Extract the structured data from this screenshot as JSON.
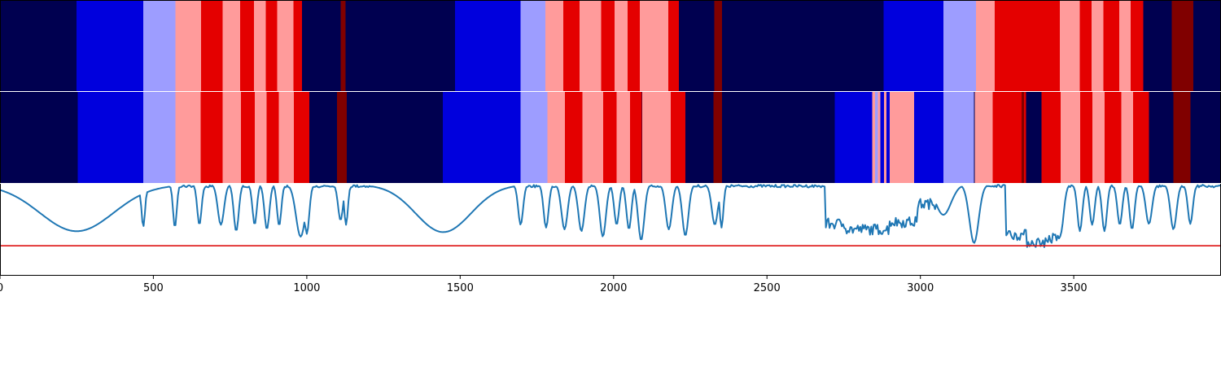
{
  "chart_data": {
    "type": "heatmap",
    "title": "",
    "xlabel": "",
    "ylabel": "",
    "xlim": [
      0,
      3980
    ],
    "grid": false,
    "legend": "none",
    "x_ticks": [
      0,
      500,
      1000,
      1500,
      2000,
      2500,
      3000,
      3500
    ],
    "x_tick_labels": [
      "0",
      "500",
      "1000",
      "1500",
      "2000",
      "2500",
      "3000",
      "3500"
    ],
    "colors": {
      "0": "#000050",
      "1": "#0000dd",
      "2": "#9d9dff",
      "3": "#ff9b9b",
      "4": "#e40000",
      "5": "#800000",
      "signal": "#1f77b4",
      "threshold": "#dd1111"
    },
    "rows": [
      {
        "segments": [
          [
            0,
            250,
            0
          ],
          [
            250,
            467,
            1
          ],
          [
            467,
            572,
            2
          ],
          [
            572,
            655,
            3
          ],
          [
            655,
            726,
            4
          ],
          [
            726,
            783,
            3
          ],
          [
            783,
            828,
            4
          ],
          [
            828,
            866,
            3
          ],
          [
            866,
            904,
            4
          ],
          [
            904,
            956,
            3
          ],
          [
            956,
            985,
            4
          ],
          [
            985,
            1110,
            0
          ],
          [
            1110,
            1126,
            5
          ],
          [
            1126,
            1483,
            0
          ],
          [
            1483,
            1697,
            1
          ],
          [
            1697,
            1778,
            2
          ],
          [
            1778,
            1836,
            3
          ],
          [
            1836,
            1889,
            4
          ],
          [
            1889,
            1959,
            3
          ],
          [
            1959,
            2003,
            4
          ],
          [
            2003,
            2046,
            3
          ],
          [
            2046,
            2085,
            4
          ],
          [
            2085,
            2179,
            3
          ],
          [
            2179,
            2213,
            4
          ],
          [
            2213,
            2328,
            0
          ],
          [
            2328,
            2354,
            5
          ],
          [
            2354,
            2880,
            0
          ],
          [
            2880,
            3075,
            1
          ],
          [
            3075,
            3181,
            2
          ],
          [
            3181,
            3242,
            3
          ],
          [
            3242,
            3455,
            4
          ],
          [
            3455,
            3520,
            3
          ],
          [
            3520,
            3558,
            4
          ],
          [
            3558,
            3597,
            3
          ],
          [
            3597,
            3648,
            4
          ],
          [
            3648,
            3686,
            3
          ],
          [
            3686,
            3726,
            4
          ],
          [
            3726,
            3820,
            0
          ],
          [
            3820,
            3890,
            5
          ],
          [
            3890,
            3980,
            0
          ]
        ]
      },
      {
        "segments": [
          [
            0,
            254,
            0
          ],
          [
            254,
            467,
            1
          ],
          [
            467,
            572,
            2
          ],
          [
            572,
            654,
            3
          ],
          [
            654,
            726,
            4
          ],
          [
            726,
            786,
            3
          ],
          [
            786,
            830,
            4
          ],
          [
            830,
            869,
            3
          ],
          [
            869,
            909,
            4
          ],
          [
            909,
            958,
            3
          ],
          [
            958,
            1008,
            4
          ],
          [
            1008,
            1098,
            0
          ],
          [
            1098,
            1130,
            5
          ],
          [
            1130,
            1444,
            0
          ],
          [
            1444,
            1697,
            1
          ],
          [
            1697,
            1784,
            2
          ],
          [
            1784,
            1841,
            3
          ],
          [
            1841,
            1898,
            4
          ],
          [
            1898,
            1966,
            3
          ],
          [
            1966,
            2010,
            4
          ],
          [
            2010,
            2054,
            3
          ],
          [
            2054,
            2092,
            4
          ],
          [
            2092,
            2094,
            0
          ],
          [
            2094,
            2186,
            3
          ],
          [
            2186,
            2234,
            4
          ],
          [
            2234,
            2326,
            0
          ],
          [
            2326,
            2354,
            5
          ],
          [
            2354,
            2721,
            0
          ],
          [
            2721,
            2729,
            1
          ],
          [
            2729,
            2795,
            1
          ],
          [
            2795,
            2843,
            1
          ],
          [
            2843,
            2852,
            3
          ],
          [
            2852,
            2861,
            2
          ],
          [
            2861,
            2870,
            3
          ],
          [
            2870,
            2881,
            1
          ],
          [
            2881,
            2889,
            3
          ],
          [
            2889,
            2900,
            1
          ],
          [
            2900,
            2980,
            3
          ],
          [
            2980,
            3075,
            1
          ],
          [
            3075,
            3175,
            2
          ],
          [
            3175,
            3178,
            0
          ],
          [
            3178,
            3236,
            3
          ],
          [
            3236,
            3330,
            4
          ],
          [
            3330,
            3338,
            5
          ],
          [
            3338,
            3345,
            4
          ],
          [
            3345,
            3395,
            0
          ],
          [
            3395,
            3457,
            4
          ],
          [
            3457,
            3521,
            3
          ],
          [
            3521,
            3561,
            4
          ],
          [
            3561,
            3600,
            3
          ],
          [
            3600,
            3655,
            4
          ],
          [
            3655,
            3693,
            3
          ],
          [
            3693,
            3745,
            4
          ],
          [
            3745,
            3825,
            0
          ],
          [
            3825,
            3880,
            5
          ],
          [
            3880,
            3980,
            0
          ]
        ]
      }
    ],
    "signal": {
      "ylim": [
        0,
        1
      ],
      "threshold": 0.32,
      "baseline": 0.99,
      "dips": [
        [
          250,
          0.48,
          120
        ],
        [
          467,
          0.53,
          6
        ],
        [
          570,
          0.52,
          6
        ],
        [
          650,
          0.55,
          7
        ],
        [
          720,
          0.55,
          10
        ],
        [
          770,
          0.48,
          8
        ],
        [
          830,
          0.55,
          7
        ],
        [
          870,
          0.5,
          8
        ],
        [
          910,
          0.54,
          7
        ],
        [
          980,
          0.42,
          15
        ],
        [
          1000,
          0.45,
          8
        ],
        [
          1110,
          0.6,
          8
        ],
        [
          1128,
          0.55,
          6
        ],
        [
          1445,
          0.47,
          90
        ],
        [
          1697,
          0.55,
          8
        ],
        [
          1780,
          0.52,
          8
        ],
        [
          1840,
          0.5,
          10
        ],
        [
          1895,
          0.48,
          10
        ],
        [
          1965,
          0.42,
          10
        ],
        [
          2010,
          0.55,
          8
        ],
        [
          2050,
          0.5,
          8
        ],
        [
          2090,
          0.38,
          10
        ],
        [
          2180,
          0.5,
          10
        ],
        [
          2234,
          0.43,
          10
        ],
        [
          2330,
          0.55,
          10
        ],
        [
          2352,
          0.52,
          6
        ],
        [
          3075,
          0.66,
          25
        ],
        [
          3175,
          0.35,
          15
        ],
        [
          3457,
          0.45,
          10
        ],
        [
          3520,
          0.48,
          8
        ],
        [
          3560,
          0.55,
          8
        ],
        [
          3600,
          0.48,
          8
        ],
        [
          3650,
          0.55,
          8
        ],
        [
          3690,
          0.5,
          8
        ],
        [
          3745,
          0.56,
          10
        ],
        [
          3825,
          0.5,
          10
        ],
        [
          3880,
          0.56,
          8
        ]
      ],
      "plateaus": [
        [
          2690,
          2760,
          0.56
        ],
        [
          2760,
          2900,
          0.5
        ],
        [
          2900,
          2990,
          0.58
        ],
        [
          2990,
          3050,
          0.78
        ],
        [
          3280,
          3345,
          0.44
        ],
        [
          3345,
          3420,
          0.36
        ],
        [
          3420,
          3460,
          0.4
        ]
      ]
    }
  }
}
